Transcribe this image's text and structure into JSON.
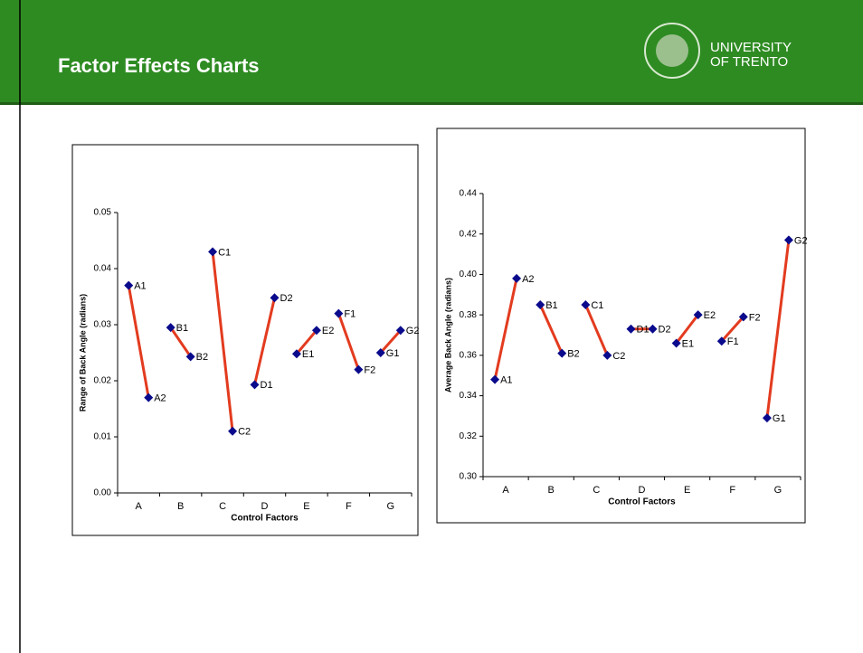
{
  "header": {
    "title": "Factor Effects Charts",
    "org_line1": "UNIVERSITY",
    "org_line2": "OF TRENTO"
  },
  "chart_data": [
    {
      "type": "line",
      "ylabel": "Range of Back Angle (radians)",
      "xlabel": "Control Factors",
      "categories": [
        "A",
        "B",
        "C",
        "D",
        "E",
        "F",
        "G"
      ],
      "levels": [
        [
          "A1",
          "A2"
        ],
        [
          "B1",
          "B2"
        ],
        [
          "C1",
          "C2"
        ],
        [
          "D1",
          "D2"
        ],
        [
          "E1",
          "E2"
        ],
        [
          "F1",
          "F2"
        ],
        [
          "G1",
          "G2"
        ]
      ],
      "values": [
        [
          0.037,
          0.017
        ],
        [
          0.0295,
          0.0243
        ],
        [
          0.043,
          0.011
        ],
        [
          0.0193,
          0.0348
        ],
        [
          0.0248,
          0.029
        ],
        [
          0.032,
          0.022
        ],
        [
          0.025,
          0.029
        ]
      ],
      "line_color": "#e33b1f",
      "marker_color": "#0a0a8c",
      "ylim": [
        0,
        0.05
      ],
      "yticks": [
        {
          "value": 0,
          "label": "0.00"
        },
        {
          "value": 0.01,
          "label": "0.01"
        },
        {
          "value": 0.02,
          "label": "0.02"
        },
        {
          "value": 0.03,
          "label": "0.03"
        },
        {
          "value": 0.04,
          "label": "0.04"
        },
        {
          "value": 0.05,
          "label": "0.05"
        }
      ]
    },
    {
      "type": "line",
      "ylabel": "Average Back Angle (radians)",
      "xlabel": "Control Factors",
      "categories": [
        "A",
        "B",
        "C",
        "D",
        "E",
        "F",
        "G"
      ],
      "levels": [
        [
          "A1",
          "A2"
        ],
        [
          "B1",
          "B2"
        ],
        [
          "C1",
          "C2"
        ],
        [
          "D1",
          "D2"
        ],
        [
          "E1",
          "E2"
        ],
        [
          "F1",
          "F2"
        ],
        [
          "G1",
          "G2"
        ]
      ],
      "values": [
        [
          0.348,
          0.398
        ],
        [
          0.385,
          0.361
        ],
        [
          0.385,
          0.36
        ],
        [
          0.373,
          0.373
        ],
        [
          0.366,
          0.38
        ],
        [
          0.367,
          0.379
        ],
        [
          0.329,
          0.417
        ]
      ],
      "line_color": "#e33b1f",
      "marker_color": "#0a0a8c",
      "ylim": [
        0.3,
        0.44
      ],
      "yticks": [
        {
          "value": 0.3,
          "label": "0.30"
        },
        0.32,
        0.34,
        0.36,
        0.38,
        {
          "value": 0.4,
          "label": "0.40"
        },
        0.42,
        0.44
      ]
    }
  ]
}
